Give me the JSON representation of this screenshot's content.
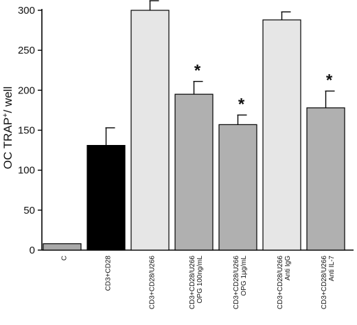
{
  "chart_data": {
    "type": "bar",
    "ylabel": "OC TRAP+/ well",
    "ylabel_main": "OC TRAP",
    "ylabel_sup": "+",
    "ylabel_rest": "/ well",
    "ylim": [
      0,
      300
    ],
    "yticks": [
      0,
      50,
      100,
      150,
      200,
      250,
      300
    ],
    "categories": [
      [
        "C"
      ],
      [
        "CD3+CD28"
      ],
      [
        "CD3+CD28/U266"
      ],
      [
        "CD3+CD28/U266",
        "OPG 100ng/mL"
      ],
      [
        "CD3+CD28/U266",
        "OPG 1μg/mL"
      ],
      [
        "CD3+CD28/U266",
        "Anti IgG"
      ],
      [
        "CD3+CD28/U266",
        "Anti IL-7"
      ]
    ],
    "values": [
      8,
      131,
      300,
      195,
      157,
      288,
      178
    ],
    "errors": [
      0,
      22,
      12,
      16,
      12,
      10,
      21
    ],
    "significance": [
      "",
      "",
      "",
      "*",
      "*",
      "",
      "*"
    ],
    "colors": [
      "#a9a9a9",
      "#000000",
      "#e6e6e6",
      "#b0b0b0",
      "#b0b0b0",
      "#e6e6e6",
      "#b0b0b0"
    ],
    "grid": false,
    "legend": "none"
  }
}
